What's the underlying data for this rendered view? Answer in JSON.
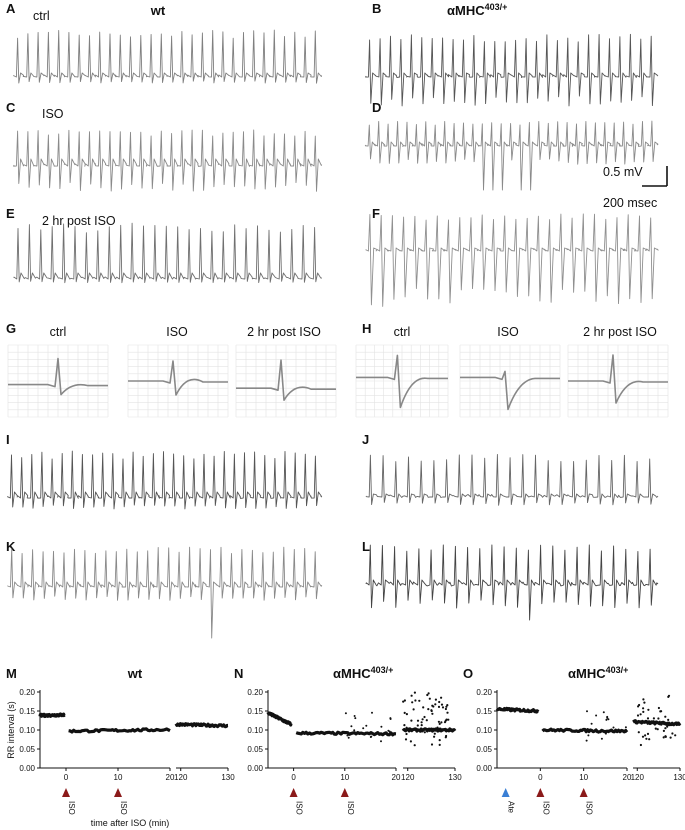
{
  "panels": {
    "A": {
      "letter": "A",
      "label": "ctrl",
      "title": "wt"
    },
    "B": {
      "letter": "B",
      "title_main": "αMHC",
      "title_sup": "403/+"
    },
    "C": {
      "letter": "C",
      "label": "ISO"
    },
    "D": {
      "letter": "D"
    },
    "E": {
      "letter": "E",
      "label": "2 hr post ISO"
    },
    "F": {
      "letter": "F"
    },
    "G": {
      "letter": "G",
      "labels": [
        "ctrl",
        "ISO",
        "2 hr post ISO"
      ]
    },
    "H": {
      "letter": "H",
      "labels": [
        "ctrl",
        "ISO",
        "2 hr post ISO"
      ]
    },
    "I": {
      "letter": "I"
    },
    "J": {
      "letter": "J"
    },
    "K": {
      "letter": "K"
    },
    "L": {
      "letter": "L"
    },
    "M": {
      "letter": "M",
      "title": "wt"
    },
    "N": {
      "letter": "N",
      "title_main": "αMHC",
      "title_sup": "403/+"
    },
    "O": {
      "letter": "O",
      "title_main": "αMHC",
      "title_sup": "403/+"
    }
  },
  "scalebar": {
    "voltage": "0.5 mV",
    "time": "200 msec"
  },
  "chart_data": [
    {
      "type": "scatter",
      "panel": "M",
      "title": "wt",
      "ylabel": "RR interval (s)",
      "xlabel": "time after ISO (min)",
      "ylim": [
        0.0,
        0.2
      ],
      "yticks": [
        "0.00",
        "0.05",
        "0.10",
        "0.15",
        "0.20"
      ],
      "xticks_left": [
        "0",
        "10",
        "20"
      ],
      "xticks_right": [
        "120",
        "130"
      ],
      "markers": [
        {
          "label": "ISO",
          "x": 0,
          "color": "#8b1a1a"
        },
        {
          "label": "ISO",
          "x": 10,
          "color": "#8b1a1a"
        }
      ],
      "segments": [
        {
          "x": [
            -5,
            -0.3
          ],
          "y": [
            0.138,
            0.14
          ]
        },
        {
          "x": [
            0.5,
            20
          ],
          "y": [
            0.097,
            0.101
          ]
        },
        {
          "x": [
            119,
            130
          ],
          "y": [
            0.115,
            0.111
          ]
        }
      ]
    },
    {
      "type": "scatter",
      "panel": "N",
      "title": "αMHC403/+",
      "ylim": [
        0.0,
        0.2
      ],
      "yticks": [
        "0.00",
        "0.05",
        "0.10",
        "0.15",
        "0.20"
      ],
      "xticks_left": [
        "0",
        "10",
        "20"
      ],
      "xticks_right": [
        "120",
        "130"
      ],
      "markers": [
        {
          "label": "ISO",
          "x": 0,
          "color": "#8b1a1a"
        },
        {
          "label": "ISO",
          "x": 10,
          "color": "#8b1a1a"
        }
      ],
      "segments": [
        {
          "x": [
            -5,
            -0.5
          ],
          "y": [
            0.145,
            0.115
          ]
        },
        {
          "x": [
            0.5,
            20
          ],
          "y": [
            0.092,
            0.09
          ]
        },
        {
          "x": [
            119,
            130
          ],
          "y": [
            0.1,
            0.1
          ]
        }
      ]
    },
    {
      "type": "scatter",
      "panel": "O",
      "title": "αMHC403/+",
      "ylim": [
        0.0,
        0.2
      ],
      "yticks": [
        "0.00",
        "0.05",
        "0.10",
        "0.15",
        "0.20"
      ],
      "xticks_left": [
        "0",
        "10",
        "20"
      ],
      "xticks_right": [
        "120",
        "130"
      ],
      "markers": [
        {
          "label": "Ate",
          "x": -8,
          "color": "#3a7fd5"
        },
        {
          "label": "ISO",
          "x": 0,
          "color": "#8b1a1a"
        },
        {
          "label": "ISO",
          "x": 10,
          "color": "#8b1a1a"
        }
      ],
      "segments": [
        {
          "x": [
            -10,
            -0.5
          ],
          "y": [
            0.155,
            0.15
          ]
        },
        {
          "x": [
            0.5,
            20
          ],
          "y": [
            0.1,
            0.097
          ]
        },
        {
          "x": [
            119,
            130
          ],
          "y": [
            0.122,
            0.115
          ]
        }
      ]
    }
  ]
}
